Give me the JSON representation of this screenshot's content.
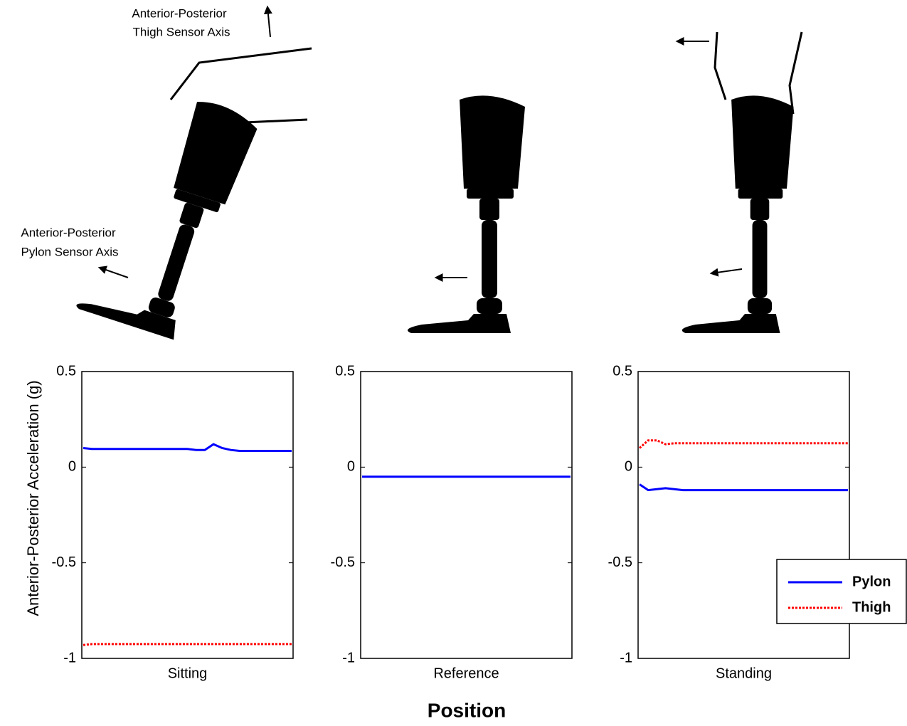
{
  "annotations": {
    "thigh_axis": [
      "Anterior-Posterior",
      "Thigh Sensor Axis"
    ],
    "pylon_axis": [
      "Anterior-Posterior",
      "Pylon Sensor Axis"
    ]
  },
  "ylabel": "Anterior-Posterior Acceleration (g)",
  "xlabel": "Position",
  "chart_data": [
    {
      "type": "line",
      "category": "Sitting",
      "ylim": [
        -1,
        0.5
      ],
      "yticks": [
        0.5,
        0,
        -0.5,
        -1
      ],
      "series": [
        {
          "name": "Pylon",
          "color": "#0000ff",
          "dash": "solid",
          "values": [
            0.1,
            0.095,
            0.095,
            0.095,
            0.095,
            0.095,
            0.095,
            0.095,
            0.095,
            0.095,
            0.095,
            0.095,
            0.095,
            0.09,
            0.09,
            0.12,
            0.1,
            0.09,
            0.085,
            0.085,
            0.085,
            0.085,
            0.085,
            0.085,
            0.085
          ]
        },
        {
          "name": "Thigh",
          "color": "#ff0000",
          "dash": "dotted",
          "values": [
            -0.93,
            -0.925,
            -0.925,
            -0.925,
            -0.925,
            -0.925,
            -0.925,
            -0.925,
            -0.925,
            -0.925,
            -0.925,
            -0.925,
            -0.925,
            -0.925,
            -0.925,
            -0.925,
            -0.925,
            -0.925,
            -0.925,
            -0.925,
            -0.925,
            -0.925,
            -0.925,
            -0.925,
            -0.925
          ]
        }
      ]
    },
    {
      "type": "line",
      "category": "Reference",
      "ylim": [
        -1,
        0.5
      ],
      "yticks": [
        0.5,
        0,
        -0.5,
        -1
      ],
      "series": [
        {
          "name": "Pylon",
          "color": "#0000ff",
          "dash": "solid",
          "values": [
            -0.05,
            -0.05,
            -0.05,
            -0.05,
            -0.05,
            -0.05,
            -0.05,
            -0.05,
            -0.05,
            -0.05,
            -0.05,
            -0.05,
            -0.05,
            -0.05,
            -0.05,
            -0.05,
            -0.05,
            -0.05,
            -0.05,
            -0.05,
            -0.05,
            -0.05,
            -0.05,
            -0.05,
            -0.05
          ]
        }
      ]
    },
    {
      "type": "line",
      "category": "Standing",
      "ylim": [
        -1,
        0.5
      ],
      "yticks": [
        0.5,
        0,
        -0.5,
        -1
      ],
      "legend": "lower right",
      "series": [
        {
          "name": "Pylon",
          "color": "#0000ff",
          "dash": "solid",
          "values": [
            -0.09,
            -0.12,
            -0.115,
            -0.11,
            -0.115,
            -0.12,
            -0.12,
            -0.12,
            -0.12,
            -0.12,
            -0.12,
            -0.12,
            -0.12,
            -0.12,
            -0.12,
            -0.12,
            -0.12,
            -0.12,
            -0.12,
            -0.12,
            -0.12,
            -0.12,
            -0.12,
            -0.12,
            -0.12
          ]
        },
        {
          "name": "Thigh",
          "color": "#ff0000",
          "dash": "dotted",
          "values": [
            0.1,
            0.14,
            0.14,
            0.12,
            0.125,
            0.125,
            0.125,
            0.125,
            0.125,
            0.125,
            0.125,
            0.125,
            0.125,
            0.125,
            0.125,
            0.125,
            0.125,
            0.125,
            0.125,
            0.125,
            0.125,
            0.125,
            0.125,
            0.125,
            0.125
          ]
        }
      ]
    }
  ]
}
